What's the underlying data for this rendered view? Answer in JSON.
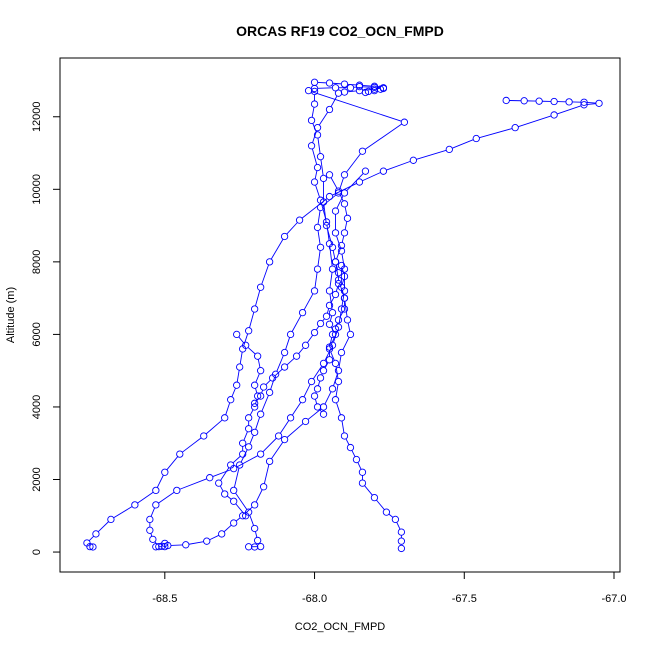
{
  "chart_data": {
    "type": "scatter",
    "title": "ORCAS RF19 CO2_OCN_FMPD",
    "xlabel": "CO2_OCN_FMPD",
    "ylabel": "Altitude (m)",
    "xlim": [
      -68.85,
      -66.98
    ],
    "ylim": [
      -550,
      13620
    ],
    "xticks": [
      -68.5,
      -68.0,
      -67.5,
      -67.0
    ],
    "xtick_labels": [
      "-68.5",
      "-68.0",
      "-67.5",
      "-67.0"
    ],
    "yticks": [
      0,
      2000,
      4000,
      6000,
      8000,
      10000,
      12000
    ],
    "ytick_labels": [
      "0",
      "2000",
      "4000",
      "6000",
      "8000",
      "10000",
      "12000"
    ],
    "grid": false,
    "legend": "none",
    "marker": "open-circle",
    "series": [
      {
        "color": "#0000ff",
        "points": [
          [
            -68.0,
            12950
          ],
          [
            -67.95,
            12930
          ],
          [
            -67.9,
            12900
          ],
          [
            -67.85,
            12870
          ],
          [
            -67.8,
            12840
          ],
          [
            -67.77,
            12800
          ],
          [
            -67.8,
            12760
          ],
          [
            -67.85,
            12720
          ],
          [
            -67.9,
            12680
          ],
          [
            -67.92,
            12650
          ],
          [
            -67.95,
            12200
          ],
          [
            -67.99,
            11700
          ],
          [
            -68.01,
            11200
          ],
          [
            -67.99,
            10600
          ],
          [
            -68.0,
            10200
          ],
          [
            -67.98,
            9700
          ],
          [
            -67.96,
            9100
          ],
          [
            -67.95,
            8500
          ],
          [
            -67.94,
            7800
          ],
          [
            -67.95,
            7200
          ],
          [
            -67.94,
            6600
          ],
          [
            -67.95,
            6280
          ],
          [
            -67.93,
            6000
          ],
          [
            -67.95,
            5600
          ],
          [
            -67.93,
            5200
          ],
          [
            -67.92,
            4700
          ],
          [
            -67.93,
            4200
          ],
          [
            -67.91,
            3700
          ],
          [
            -67.9,
            3200
          ],
          [
            -67.88,
            2880
          ],
          [
            -67.86,
            2550
          ],
          [
            -67.84,
            2200
          ],
          [
            -67.84,
            1900
          ],
          [
            -67.8,
            1500
          ],
          [
            -67.76,
            1100
          ],
          [
            -67.73,
            900
          ],
          [
            -67.71,
            550
          ],
          [
            -67.71,
            300
          ],
          [
            -67.71,
            100
          ]
        ]
      },
      {
        "color": "#0000ff",
        "points": [
          [
            -68.0,
            12700
          ],
          [
            -68.0,
            12350
          ],
          [
            -68.01,
            11900
          ],
          [
            -67.99,
            11500
          ],
          [
            -67.98,
            10900
          ],
          [
            -67.97,
            10300
          ],
          [
            -67.97,
            9650
          ],
          [
            -67.96,
            9000
          ],
          [
            -67.94,
            8400
          ],
          [
            -67.93,
            8000
          ],
          [
            -67.92,
            7500
          ],
          [
            -67.9,
            7000
          ],
          [
            -67.89,
            6400
          ],
          [
            -67.88,
            6000
          ],
          [
            -67.91,
            5500
          ],
          [
            -67.92,
            5000
          ],
          [
            -67.94,
            4500
          ],
          [
            -67.97,
            4000
          ],
          [
            -68.03,
            3600
          ],
          [
            -68.1,
            3100
          ],
          [
            -68.15,
            2500
          ],
          [
            -68.17,
            1800
          ],
          [
            -68.2,
            1300
          ],
          [
            -68.24,
            1000
          ],
          [
            -68.27,
            800
          ],
          [
            -68.31,
            500
          ],
          [
            -68.36,
            300
          ],
          [
            -68.43,
            200
          ],
          [
            -68.49,
            180
          ],
          [
            -68.51,
            160
          ],
          [
            -68.5,
            240
          ]
        ]
      },
      {
        "color": "#0000ff",
        "points": [
          [
            -67.36,
            12450
          ],
          [
            -67.3,
            12440
          ],
          [
            -67.25,
            12430
          ],
          [
            -67.2,
            12420
          ],
          [
            -67.15,
            12410
          ],
          [
            -67.1,
            12400
          ],
          [
            -67.05,
            12370
          ],
          [
            -67.1,
            12330
          ],
          [
            -67.2,
            12050
          ],
          [
            -67.33,
            11700
          ],
          [
            -67.46,
            11400
          ],
          [
            -67.55,
            11100
          ],
          [
            -67.67,
            10800
          ],
          [
            -67.77,
            10500
          ],
          [
            -67.85,
            10200
          ],
          [
            -67.95,
            9800
          ],
          [
            -68.05,
            9150
          ],
          [
            -68.1,
            8700
          ],
          [
            -68.15,
            8000
          ],
          [
            -68.18,
            7300
          ],
          [
            -68.2,
            6700
          ],
          [
            -68.22,
            6100
          ],
          [
            -68.24,
            5600
          ],
          [
            -68.25,
            5100
          ],
          [
            -68.26,
            4600
          ],
          [
            -68.28,
            4200
          ],
          [
            -68.3,
            3700
          ],
          [
            -68.37,
            3200
          ],
          [
            -68.45,
            2700
          ],
          [
            -68.5,
            2200
          ],
          [
            -68.53,
            1700
          ],
          [
            -68.6,
            1300
          ],
          [
            -68.68,
            900
          ],
          [
            -68.73,
            500
          ],
          [
            -68.76,
            250
          ],
          [
            -68.75,
            150
          ],
          [
            -68.74,
            140
          ]
        ]
      },
      {
        "color": "#0000ff",
        "points": [
          [
            -67.83,
            12670
          ],
          [
            -67.82,
            12700
          ],
          [
            -67.8,
            12720
          ],
          [
            -67.78,
            12760
          ],
          [
            -67.77,
            12780
          ],
          [
            -67.8,
            12810
          ],
          [
            -67.85,
            12830
          ],
          [
            -67.88,
            12800
          ],
          [
            -67.93,
            12800
          ],
          [
            -68.0,
            12780
          ],
          [
            -68.02,
            12720
          ],
          [
            -67.7,
            11850
          ],
          [
            -67.84,
            11050
          ],
          [
            -67.9,
            10400
          ],
          [
            -67.92,
            9900
          ],
          [
            -67.98,
            9500
          ],
          [
            -67.99,
            8950
          ],
          [
            -67.98,
            8400
          ],
          [
            -67.99,
            7800
          ],
          [
            -68.0,
            7200
          ],
          [
            -68.04,
            6600
          ],
          [
            -68.08,
            6000
          ],
          [
            -68.1,
            5500
          ],
          [
            -68.13,
            4900
          ],
          [
            -68.15,
            4400
          ],
          [
            -68.18,
            3800
          ],
          [
            -68.2,
            3300
          ],
          [
            -68.22,
            2900
          ],
          [
            -68.25,
            2400
          ],
          [
            -68.27,
            1700
          ],
          [
            -68.22,
            1100
          ],
          [
            -68.2,
            650
          ],
          [
            -68.19,
            320
          ],
          [
            -68.2,
            140
          ],
          [
            -68.22,
            145
          ],
          [
            -68.18,
            150
          ]
        ]
      },
      {
        "color": "#0000ff",
        "points": [
          [
            -67.83,
            10500
          ],
          [
            -67.9,
            9900
          ],
          [
            -67.93,
            9400
          ],
          [
            -67.93,
            8800
          ],
          [
            -67.91,
            8300
          ],
          [
            -67.9,
            7800
          ],
          [
            -67.9,
            7200
          ],
          [
            -67.91,
            6700
          ],
          [
            -67.92,
            6200
          ],
          [
            -67.94,
            5700
          ],
          [
            -67.97,
            5200
          ],
          [
            -68.01,
            4700
          ],
          [
            -68.04,
            4200
          ],
          [
            -68.08,
            3700
          ],
          [
            -68.12,
            3200
          ],
          [
            -68.18,
            2700
          ],
          [
            -68.27,
            2300
          ],
          [
            -68.35,
            2050
          ],
          [
            -68.46,
            1700
          ],
          [
            -68.53,
            1300
          ],
          [
            -68.55,
            900
          ],
          [
            -68.55,
            600
          ],
          [
            -68.54,
            350
          ],
          [
            -68.52,
            150
          ],
          [
            -68.53,
            145
          ],
          [
            -68.5,
            150
          ]
        ]
      },
      {
        "color": "#0000ff",
        "points": [
          [
            -68.2,
            4100
          ],
          [
            -68.18,
            4300
          ],
          [
            -68.17,
            4550
          ],
          [
            -68.14,
            4800
          ],
          [
            -68.1,
            5100
          ],
          [
            -68.06,
            5400
          ],
          [
            -68.03,
            5700
          ],
          [
            -68.0,
            6050
          ],
          [
            -67.98,
            6300
          ],
          [
            -67.96,
            6500
          ],
          [
            -67.95,
            6800
          ],
          [
            -67.93,
            7100
          ],
          [
            -67.92,
            7400
          ],
          [
            -67.92,
            7700
          ],
          [
            -67.93,
            8000
          ],
          [
            -67.91,
            8450
          ],
          [
            -67.9,
            8800
          ],
          [
            -67.89,
            9200
          ],
          [
            -67.9,
            9600
          ],
          [
            -67.92,
            9950
          ],
          [
            -67.95,
            10400
          ]
        ]
      },
      {
        "color": "#0000ff",
        "points": [
          [
            -68.23,
            1000
          ],
          [
            -68.27,
            1400
          ],
          [
            -68.3,
            1600
          ],
          [
            -68.32,
            1900
          ],
          [
            -68.28,
            2400
          ],
          [
            -68.24,
            2700
          ],
          [
            -68.24,
            3000
          ],
          [
            -68.22,
            3400
          ],
          [
            -68.22,
            3700
          ],
          [
            -68.2,
            4000
          ],
          [
            -68.19,
            4300
          ],
          [
            -68.2,
            4600
          ],
          [
            -68.18,
            5000
          ],
          [
            -68.19,
            5400
          ],
          [
            -68.23,
            5700
          ],
          [
            -68.26,
            6000
          ]
        ]
      },
      {
        "color": "#0000ff",
        "points": [
          [
            -67.97,
            3800
          ],
          [
            -67.99,
            4000
          ],
          [
            -68.0,
            4300
          ],
          [
            -67.99,
            4500
          ],
          [
            -67.98,
            4800
          ],
          [
            -67.97,
            5000
          ],
          [
            -67.95,
            5300
          ],
          [
            -67.95,
            5650
          ],
          [
            -67.94,
            6000
          ],
          [
            -67.93,
            6150
          ],
          [
            -67.92,
            6400
          ],
          [
            -67.9,
            6700
          ],
          [
            -67.9,
            7000
          ],
          [
            -67.91,
            7300
          ],
          [
            -67.9,
            7600
          ],
          [
            -67.91,
            7900
          ]
        ]
      }
    ]
  }
}
